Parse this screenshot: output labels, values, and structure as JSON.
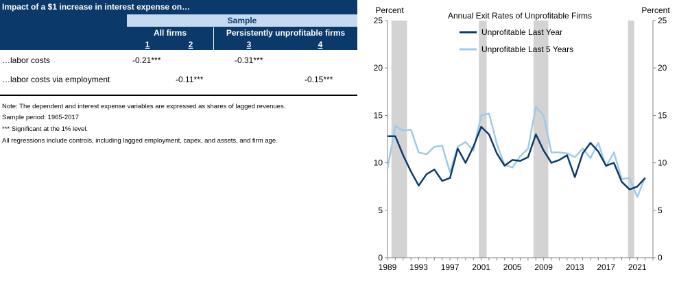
{
  "table": {
    "title": "Impact of a $1 increase in interest expense on…",
    "sample_label": "Sample",
    "groups": [
      "All firms",
      "Persistently unprofitable firms"
    ],
    "columns": [
      "1",
      "2",
      "3",
      "4"
    ],
    "rows": [
      {
        "label": "…labor costs",
        "values": [
          "-0.21***",
          "",
          "-0.31***",
          ""
        ]
      },
      {
        "label": "…labor costs via employment",
        "values": [
          "",
          "-0.11***",
          "",
          "-0.15***"
        ]
      }
    ]
  },
  "notes": [
    "Note: The dependent and interest expense variables are expressed as shares of lagged revenues.",
    "Sample period: 1965-2017",
    "*** Significant at the 1% level.",
    "All regressions include controls, including lagged employment, capex, and assets, and firm age."
  ],
  "chart_data": {
    "type": "line",
    "title": "Annual Exit Rates of Unprofitable Firms",
    "ylabel_left": "Percent",
    "ylabel_right": "Percent",
    "ylim": [
      0,
      25
    ],
    "yticks": [
      0,
      5,
      10,
      15,
      20,
      25
    ],
    "xlim": [
      1989,
      2023
    ],
    "xticks": [
      1989,
      1993,
      1997,
      2001,
      2005,
      2009,
      2013,
      2017,
      2021
    ],
    "recessions": [
      [
        1989.5,
        1991.5
      ],
      [
        2000.7,
        2001.7
      ],
      [
        2007.7,
        2009.6
      ],
      [
        2019.8,
        2020.6
      ]
    ],
    "series": [
      {
        "name": "Unprofitable Last Year",
        "color": "#0b3a6a",
        "x": [
          1989,
          1990,
          1991,
          1992,
          1993,
          1994,
          1995,
          1996,
          1997,
          1998,
          1999,
          2000,
          2001,
          2002,
          2003,
          2004,
          2005,
          2006,
          2007,
          2008,
          2009,
          2010,
          2011,
          2012,
          2013,
          2014,
          2015,
          2016,
          2017,
          2018,
          2019,
          2020,
          2021,
          2022
        ],
        "values": [
          12.8,
          12.8,
          10.8,
          9.1,
          7.6,
          8.8,
          9.3,
          8.1,
          8.4,
          11.5,
          10.0,
          11.7,
          13.8,
          13.0,
          11.0,
          9.7,
          10.3,
          10.2,
          10.6,
          13.0,
          11.3,
          10.0,
          10.3,
          10.8,
          8.5,
          11.0,
          12.1,
          11.2,
          9.7,
          10.0,
          8.0,
          7.2,
          7.5,
          8.4
        ]
      },
      {
        "name": "Unprofitable Last 5 Years",
        "color": "#9ecae9",
        "x": [
          1989,
          1990,
          1991,
          1992,
          1993,
          1994,
          1995,
          1996,
          1997,
          1998,
          1999,
          2000,
          2001,
          2002,
          2003,
          2004,
          2005,
          2006,
          2007,
          2008,
          2009,
          2010,
          2011,
          2012,
          2013,
          2014,
          2015,
          2016,
          2017,
          2018,
          2019,
          2020,
          2021,
          2022
        ],
        "values": [
          9.4,
          13.9,
          13.4,
          13.5,
          11.1,
          10.9,
          11.7,
          11.8,
          9.0,
          11.7,
          12.2,
          11.3,
          15.0,
          15.2,
          12.0,
          9.8,
          9.5,
          10.7,
          11.5,
          15.9,
          15.0,
          11.1,
          11.1,
          11.0,
          10.6,
          11.5,
          10.5,
          12.1,
          9.6,
          11.1,
          8.3,
          8.4,
          6.4,
          8.5
        ]
      }
    ]
  }
}
